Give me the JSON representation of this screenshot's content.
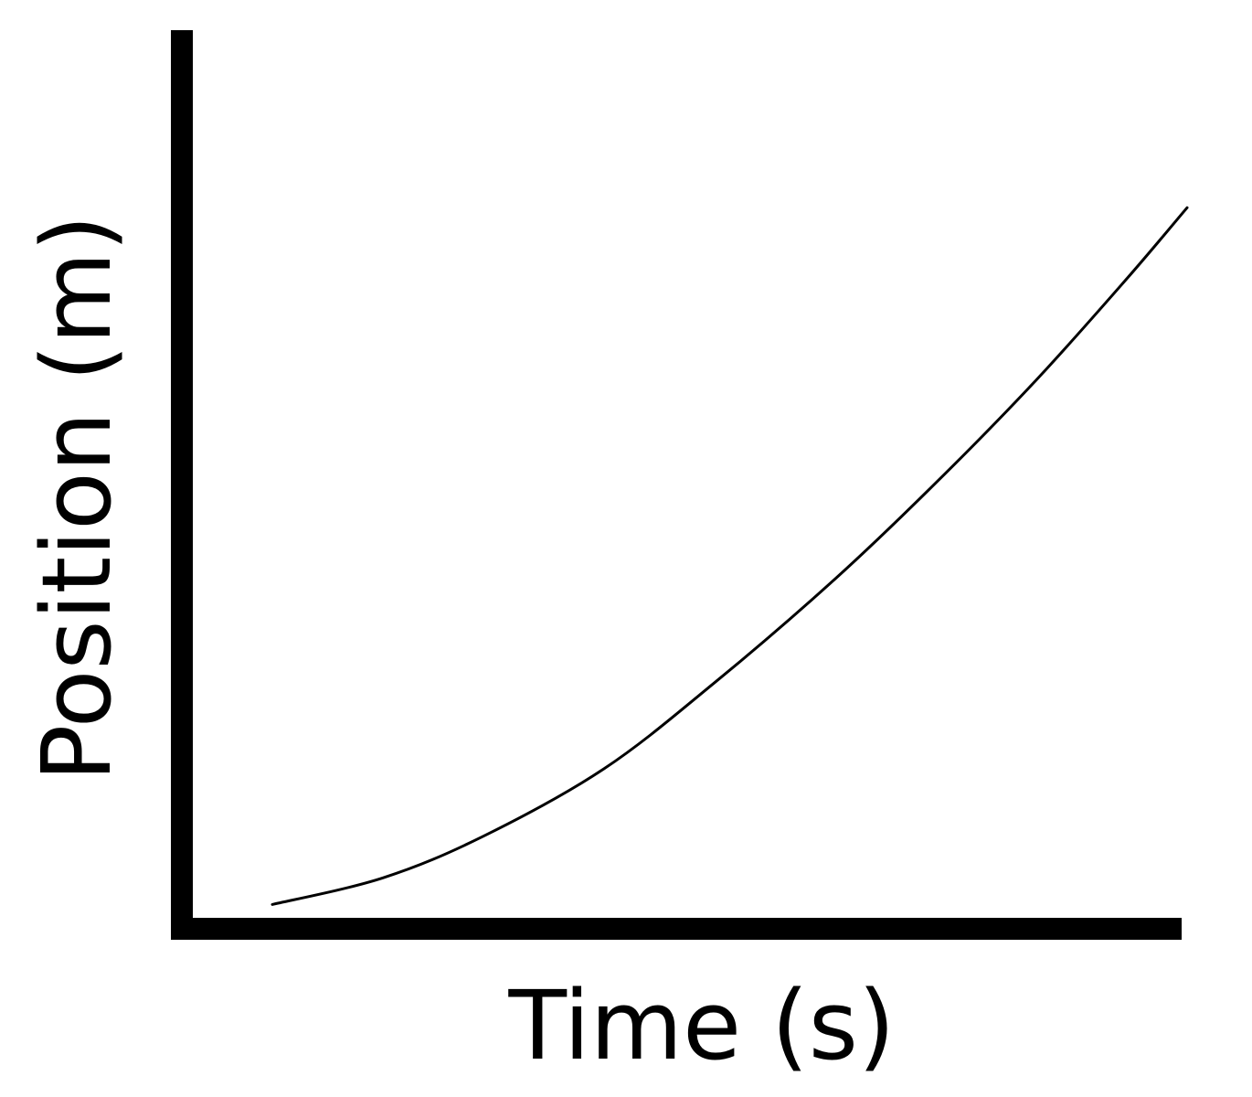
{
  "chart_data": {
    "type": "line",
    "title": "",
    "xlabel": "Time (s)",
    "ylabel": "Position (m)",
    "xlim": [
      0,
      1
    ],
    "ylim": [
      0,
      1
    ],
    "grid": false,
    "legend": "none",
    "series": [
      {
        "values": [
          [
            0.09,
            0.015
          ],
          [
            0.2,
            0.045
          ],
          [
            0.3,
            0.092
          ],
          [
            0.42,
            0.168
          ],
          [
            0.53,
            0.265
          ],
          [
            0.65,
            0.382
          ],
          [
            0.75,
            0.49
          ],
          [
            0.85,
            0.606
          ],
          [
            0.94,
            0.72
          ],
          [
            1.0,
            0.8
          ]
        ]
      }
    ],
    "colors": {
      "axis": "#000000",
      "line": "#000000"
    }
  }
}
